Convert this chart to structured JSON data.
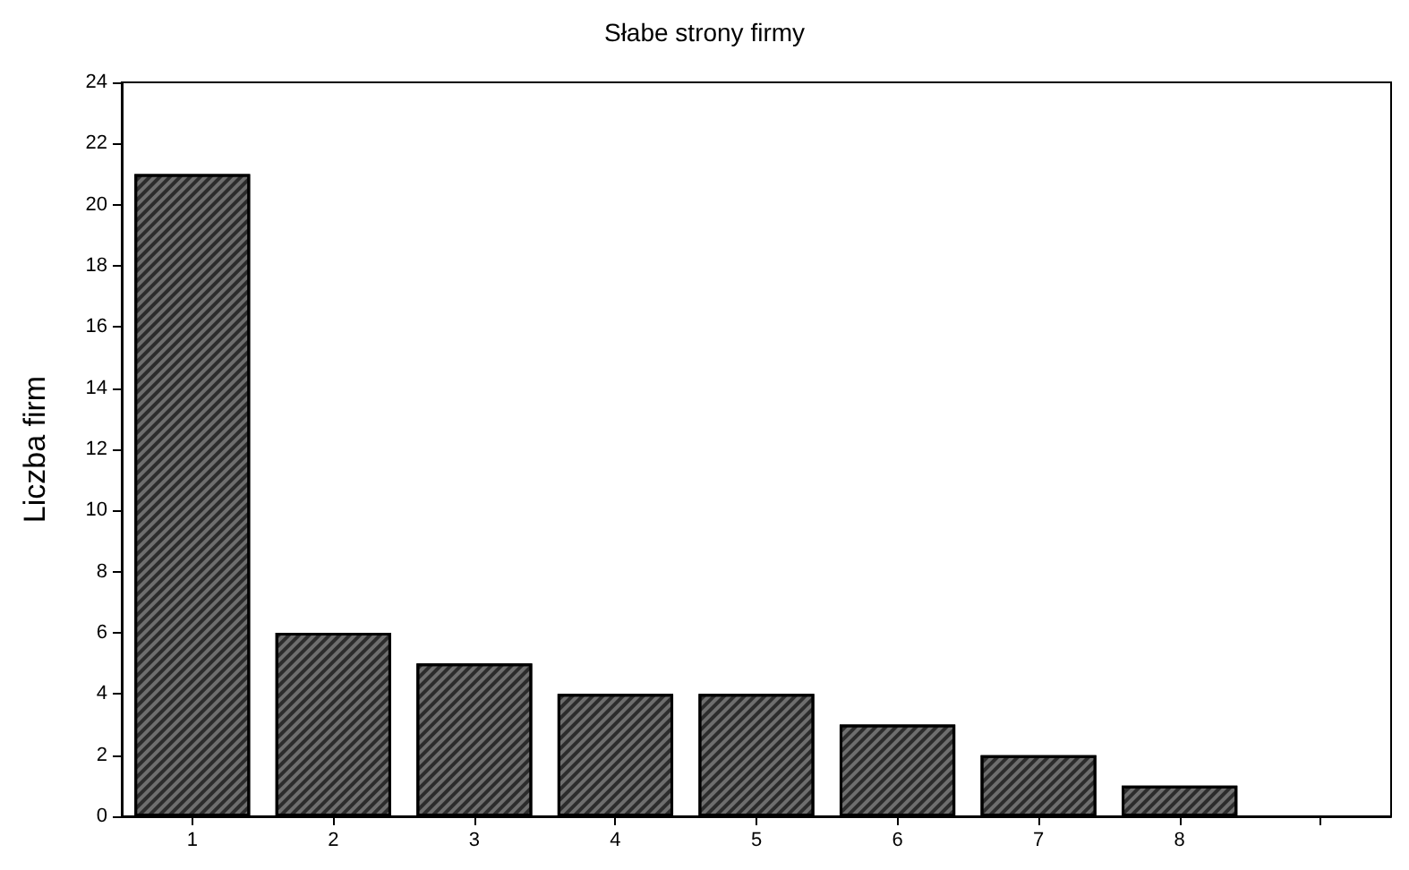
{
  "chart_data": {
    "type": "bar",
    "title": "Słabe strony firmy",
    "ylabel": "Liczba firm",
    "categories": [
      "1",
      "2",
      "3",
      "4",
      "5",
      "6",
      "7",
      "8",
      null
    ],
    "values": [
      21,
      6,
      5,
      4,
      4,
      3,
      2,
      1,
      null
    ],
    "color": "#6e6e6e",
    "ylim": [
      0,
      24
    ],
    "yticks": [
      0,
      2,
      4,
      6,
      8,
      10,
      12,
      14,
      16,
      18,
      20,
      22,
      24
    ],
    "grid": false
  }
}
